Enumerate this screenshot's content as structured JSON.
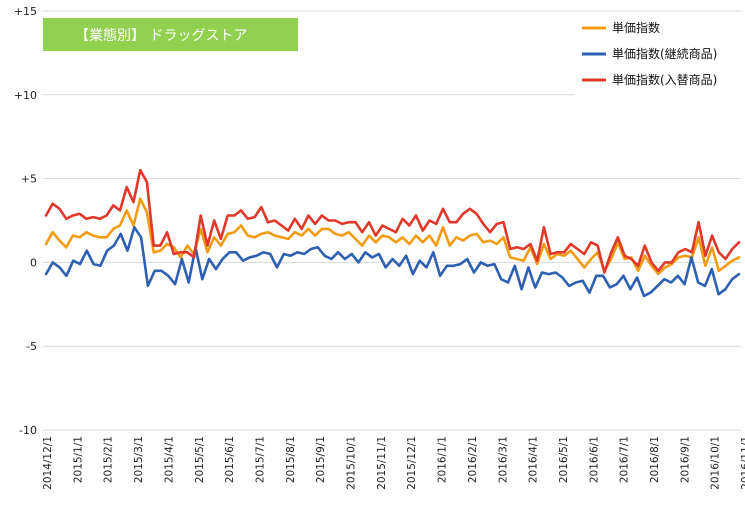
{
  "chart_data": {
    "type": "line",
    "title": "【業態別】 ドラッグストア",
    "title_bg": "#92D050",
    "ylim": [
      -10,
      15
    ],
    "yticks": [
      {
        "v": 15,
        "label": "+15"
      },
      {
        "v": 10,
        "label": "+10"
      },
      {
        "v": 5,
        "label": "+5"
      },
      {
        "v": 0,
        "label": "0"
      },
      {
        "v": -5,
        "label": "-5"
      },
      {
        "v": -10,
        "label": "-10"
      }
    ],
    "xticks": [
      "2014/12/1",
      "2015/1/1",
      "2015/2/1",
      "2015/3/1",
      "2015/4/1",
      "2015/5/1",
      "2015/6/1",
      "2015/7/1",
      "2015/8/1",
      "2015/9/1",
      "2015/10/1",
      "2015/11/1",
      "2015/12/1",
      "2016/1/1",
      "2016/2/1",
      "2016/3/1",
      "2016/4/1",
      "2016/5/1",
      "2016/6/1",
      "2016/7/1",
      "2016/8/1",
      "2016/9/1",
      "2016/10/1",
      "2016/11/1"
    ],
    "grid": "horizontal",
    "legend_position": "top-right",
    "series": [
      {
        "name": "単価指数",
        "color": "#F39C12",
        "values": [
          1.1,
          1.8,
          1.3,
          0.9,
          1.6,
          1.5,
          1.8,
          1.6,
          1.5,
          1.5,
          2.0,
          2.2,
          3.1,
          2.2,
          3.8,
          3.0,
          0.6,
          0.7,
          1.1,
          0.9,
          0.3,
          1.0,
          0.5,
          2.0,
          0.6,
          1.5,
          1.0,
          1.7,
          1.8,
          2.2,
          1.6,
          1.5,
          1.7,
          1.8,
          1.6,
          1.5,
          1.4,
          1.8,
          1.6,
          2.0,
          1.6,
          2.0,
          2.0,
          1.7,
          1.6,
          1.8,
          1.4,
          1.0,
          1.6,
          1.2,
          1.6,
          1.5,
          1.2,
          1.5,
          1.1,
          1.6,
          1.2,
          1.6,
          1.0,
          2.1,
          1.0,
          1.5,
          1.3,
          1.6,
          1.7,
          1.2,
          1.3,
          1.1,
          1.5,
          0.3,
          0.2,
          0.1,
          0.9,
          -0.1,
          1.1,
          0.2,
          0.5,
          0.4,
          0.7,
          0.2,
          -0.3,
          0.2,
          0.6,
          -0.5,
          0.2,
          1.2,
          0.2,
          0.3,
          -0.5,
          0.4,
          -0.2,
          -0.7,
          -0.3,
          -0.1,
          0.3,
          0.4,
          0.3,
          1.5,
          -0.2,
          0.9,
          -0.5,
          -0.2,
          0.1,
          0.3
        ]
      },
      {
        "name": "単価指数(継続商品)",
        "color": "#2E5FB0",
        "values": [
          -0.7,
          0.0,
          -0.3,
          -0.8,
          0.1,
          -0.1,
          0.7,
          -0.1,
          -0.2,
          0.7,
          1.0,
          1.7,
          0.7,
          2.1,
          1.5,
          -1.4,
          -0.5,
          -0.5,
          -0.8,
          -1.3,
          0.2,
          -1.2,
          0.9,
          -1.0,
          0.2,
          -0.4,
          0.2,
          0.6,
          0.6,
          0.1,
          0.3,
          0.4,
          0.6,
          0.5,
          -0.3,
          0.5,
          0.4,
          0.6,
          0.5,
          0.8,
          0.9,
          0.4,
          0.2,
          0.6,
          0.2,
          0.5,
          0.0,
          0.6,
          0.3,
          0.5,
          -0.3,
          0.2,
          -0.2,
          0.4,
          -0.7,
          0.1,
          -0.3,
          0.6,
          -0.8,
          -0.2,
          -0.2,
          -0.1,
          0.2,
          -0.6,
          0.0,
          -0.2,
          -0.1,
          -1.0,
          -1.2,
          -0.2,
          -1.6,
          -0.3,
          -1.5,
          -0.6,
          -0.7,
          -0.6,
          -0.9,
          -1.4,
          -1.2,
          -1.1,
          -1.8,
          -0.8,
          -0.8,
          -1.5,
          -1.3,
          -0.8,
          -1.6,
          -0.9,
          -2.0,
          -1.8,
          -1.4,
          -1.0,
          -1.2,
          -0.8,
          -1.3,
          0.3,
          -1.2,
          -1.4,
          -0.4,
          -1.9,
          -1.6,
          -1.0,
          -0.7
        ]
      },
      {
        "name": "単価指数(入替商品)",
        "color": "#E0392B",
        "values": [
          2.8,
          3.5,
          3.2,
          2.6,
          2.8,
          2.9,
          2.6,
          2.7,
          2.6,
          2.8,
          3.4,
          3.1,
          4.5,
          3.6,
          5.5,
          4.8,
          1.0,
          1.0,
          1.8,
          0.5,
          0.6,
          0.6,
          0.3,
          2.8,
          1.0,
          2.5,
          1.4,
          2.8,
          2.8,
          3.1,
          2.6,
          2.7,
          3.3,
          2.4,
          2.5,
          2.2,
          1.9,
          2.6,
          2.0,
          2.8,
          2.3,
          2.8,
          2.5,
          2.5,
          2.3,
          2.4,
          2.4,
          1.8,
          2.4,
          1.6,
          2.2,
          2.0,
          1.8,
          2.6,
          2.2,
          2.8,
          1.9,
          2.5,
          2.3,
          3.2,
          2.4,
          2.4,
          2.9,
          3.2,
          2.9,
          2.3,
          1.8,
          2.3,
          2.4,
          0.8,
          0.9,
          0.8,
          1.1,
          0.1,
          2.1,
          0.5,
          0.6,
          0.6,
          1.1,
          0.8,
          0.5,
          1.2,
          1.0,
          -0.6,
          0.6,
          1.5,
          0.4,
          0.2,
          -0.2,
          1.0,
          0.0,
          -0.5,
          0.0,
          0.0,
          0.6,
          0.8,
          0.6,
          2.4,
          0.4,
          1.6,
          0.6,
          0.2,
          0.8,
          1.2
        ]
      }
    ]
  }
}
